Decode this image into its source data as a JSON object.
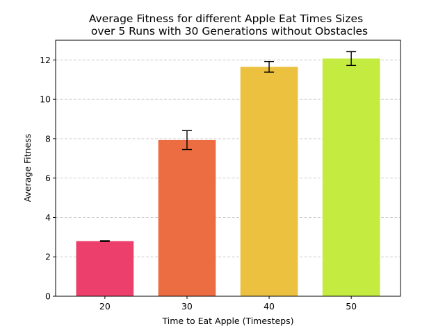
{
  "chart_data": {
    "type": "bar",
    "title_line1": "Average Fitness for different Apple Eat Times Sizes",
    "title_line2": "over 5 Runs with 30 Generations without Obstacles",
    "xlabel": "Time to Eat Apple (Timesteps)",
    "ylabel": "Average Fitness",
    "categories": [
      "20",
      "30",
      "40",
      "50"
    ],
    "values": [
      2.8,
      7.93,
      11.65,
      12.07
    ],
    "errors": [
      0.02,
      0.48,
      0.27,
      0.35
    ],
    "colors": [
      "#ec3f6b",
      "#ec6d41",
      "#ecc140",
      "#c4eb40"
    ],
    "ylim": [
      0,
      13
    ],
    "yticks": [
      "0",
      "2",
      "4",
      "6",
      "8",
      "10",
      "12"
    ],
    "grid": "y-dashed",
    "legend": "none"
  }
}
